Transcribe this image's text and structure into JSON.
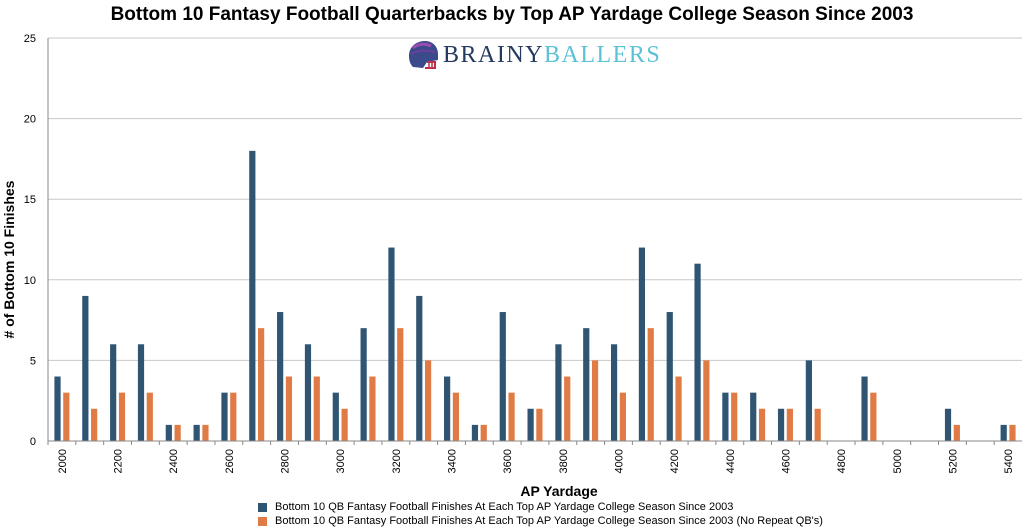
{
  "chart_data": {
    "type": "bar",
    "title": "Bottom 10 Fantasy Football Quarterbacks by Top AP Yardage College Season Since 2003",
    "xlabel": "AP Yardage",
    "ylabel": "# of Bottom 10 Finishes",
    "ylim": [
      0,
      25
    ],
    "yticks": [
      "0",
      "5",
      "10",
      "15",
      "20",
      "25"
    ],
    "categories": [
      "2000",
      "2100",
      "2200",
      "2300",
      "2400",
      "2500",
      "2600",
      "2700",
      "2800",
      "2900",
      "3000",
      "3100",
      "3200",
      "3300",
      "3400",
      "3500",
      "3600",
      "3700",
      "3800",
      "3900",
      "4000",
      "4100",
      "4200",
      "4300",
      "4400",
      "4500",
      "4600",
      "4700",
      "4800",
      "4900",
      "5000",
      "5100",
      "5200",
      "5300",
      "5400"
    ],
    "tick_labels": [
      "2000",
      "",
      "2200",
      "",
      "2400",
      "",
      "2600",
      "",
      "2800",
      "",
      "3000",
      "",
      "3200",
      "",
      "3400",
      "",
      "3600",
      "",
      "3800",
      "",
      "4000",
      "",
      "4200",
      "",
      "4400",
      "",
      "4600",
      "",
      "4800",
      "",
      "5000",
      "",
      "5200",
      "",
      "5400"
    ],
    "series": [
      {
        "name": "Bottom 10 QB Fantasy Football Finishes At Each Top AP Yardage College Season Since 2003",
        "color": "#2f5573",
        "values": [
          4,
          9,
          6,
          6,
          1,
          1,
          3,
          18,
          8,
          6,
          3,
          7,
          12,
          9,
          4,
          1,
          8,
          2,
          6,
          7,
          6,
          12,
          8,
          11,
          3,
          3,
          2,
          5,
          0,
          4,
          0,
          0,
          2,
          0,
          1
        ]
      },
      {
        "name": "Bottom 10 QB Fantasy Football Finishes At Each Top AP Yardage College Season Since 2003 (No Repeat QB's)",
        "color": "#e07b45",
        "values": [
          3,
          2,
          3,
          3,
          1,
          1,
          3,
          7,
          4,
          4,
          2,
          4,
          7,
          5,
          3,
          1,
          3,
          2,
          4,
          5,
          3,
          7,
          4,
          5,
          3,
          2,
          2,
          2,
          0,
          3,
          0,
          0,
          1,
          0,
          1
        ]
      }
    ],
    "grid": true,
    "legend_position": "bottom"
  },
  "logo": {
    "part1": "BRAINY",
    "part2": "BALLERS"
  }
}
